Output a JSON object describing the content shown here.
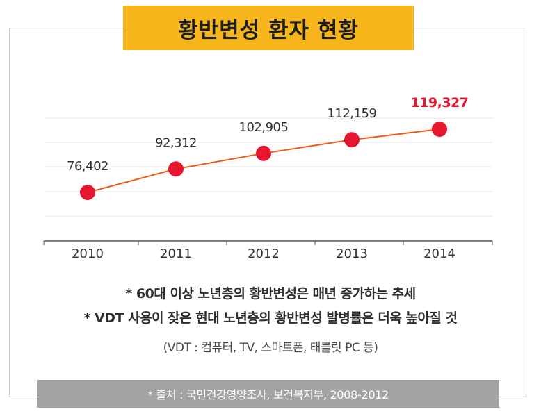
{
  "title": "황반변성 환자 현황",
  "chart_data": {
    "type": "line",
    "categories": [
      "2010",
      "2011",
      "2012",
      "2013",
      "2014"
    ],
    "series": [
      {
        "values": [
          76402,
          92312,
          102905,
          112159,
          119327
        ]
      }
    ],
    "data_labels": [
      "76,402",
      "92,312",
      "102,905",
      "112,159",
      "119,327"
    ],
    "highlight_index": 4,
    "grid": true,
    "line_color": "#ee5a12",
    "point_color": "#e5162d",
    "highlight_label_color": "#e5162d"
  },
  "notes": {
    "line1": "* 60대 이상 노년층의 황반변성은 매년 증가하는 추세",
    "line2": "* VDT 사용이 잦은 현대 노년층의 황반변성 발병률은 더욱 높아질 것",
    "line3": "(VDT : 컴퓨터, TV, 스마트폰, 태블릿 PC 등)"
  },
  "source": "* 출처 : 국민건강영양조사, 보건복지부, 2008-2012",
  "colors": {
    "title_bg": "#f7b51c",
    "source_bg": "#a3a3a3",
    "frame_border": "#c9c9c9"
  }
}
